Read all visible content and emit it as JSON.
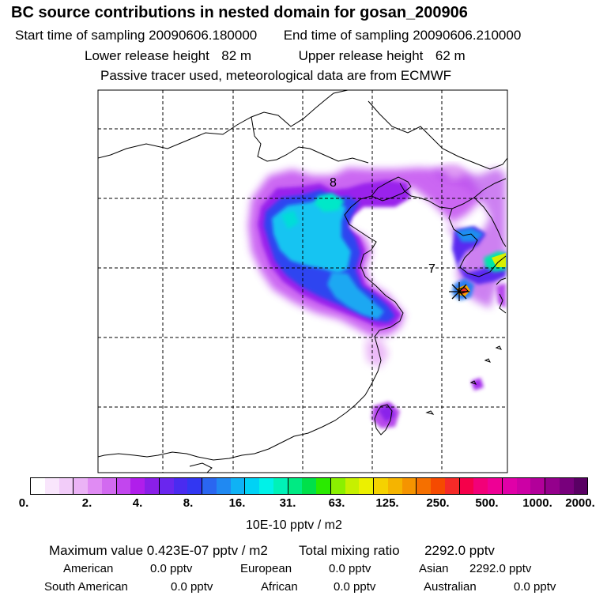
{
  "title": "BC  source contributions in nested domain for gosan_200906",
  "sampling": {
    "start_label": "Start time of sampling",
    "start_value": "20090606.180000",
    "end_label": "End time of sampling",
    "end_value": "20090606.210000"
  },
  "release": {
    "lower_label": "Lower release height",
    "lower_value": "82 m",
    "upper_label": "Upper release height",
    "upper_value": "62 m"
  },
  "note": "Passive tracer used, meteorological data are from ECMWF",
  "map": {
    "labels": [
      {
        "text": "8"
      },
      {
        "text": "7"
      }
    ],
    "receptor_marker": "asterisk-marker"
  },
  "colorbar": {
    "colors": [
      "#ffffff",
      "#f9e6fc",
      "#f2ccf9",
      "#ebb3f6",
      "#e08bf3",
      "#d26af0",
      "#c246ee",
      "#b01eeb",
      "#8a1fe8",
      "#6a26ee",
      "#4a2bf0",
      "#3237f2",
      "#2a66f0",
      "#2089f2",
      "#0fb2f5",
      "#00d2f5",
      "#00f2e8",
      "#00f2b8",
      "#00ea83",
      "#00e04a",
      "#2aea00",
      "#8af000",
      "#c6f000",
      "#ecf000",
      "#f5d200",
      "#f5b400",
      "#f59400",
      "#f57000",
      "#f54a00",
      "#f52a28",
      "#f5004a",
      "#f20078",
      "#ee0095",
      "#e000a8",
      "#cc00a5",
      "#b2009a",
      "#94008c",
      "#78007c",
      "#5a0064"
    ],
    "ticks": [
      "0.",
      "2.",
      "4.",
      "8.",
      "16.",
      "31.",
      "63.",
      "125.",
      "250.",
      "500.",
      "1000.",
      "2000."
    ],
    "unit": "10E-10 pptv / m2"
  },
  "summary": {
    "max_label": "Maximum value",
    "max_value": "0.423E-07 pptv / m2",
    "total_label": "Total mixing ratio",
    "total_value": "2292.0 pptv",
    "regions": [
      {
        "name": "American",
        "value": "0.0 pptv"
      },
      {
        "name": "European",
        "value": "0.0 pptv"
      },
      {
        "name": "Asian",
        "value": "2292.0 pptv"
      },
      {
        "name": "South American",
        "value": "0.0 pptv"
      },
      {
        "name": "African",
        "value": "0.0 pptv"
      },
      {
        "name": "Australian",
        "value": "0.0 pptv"
      }
    ]
  }
}
